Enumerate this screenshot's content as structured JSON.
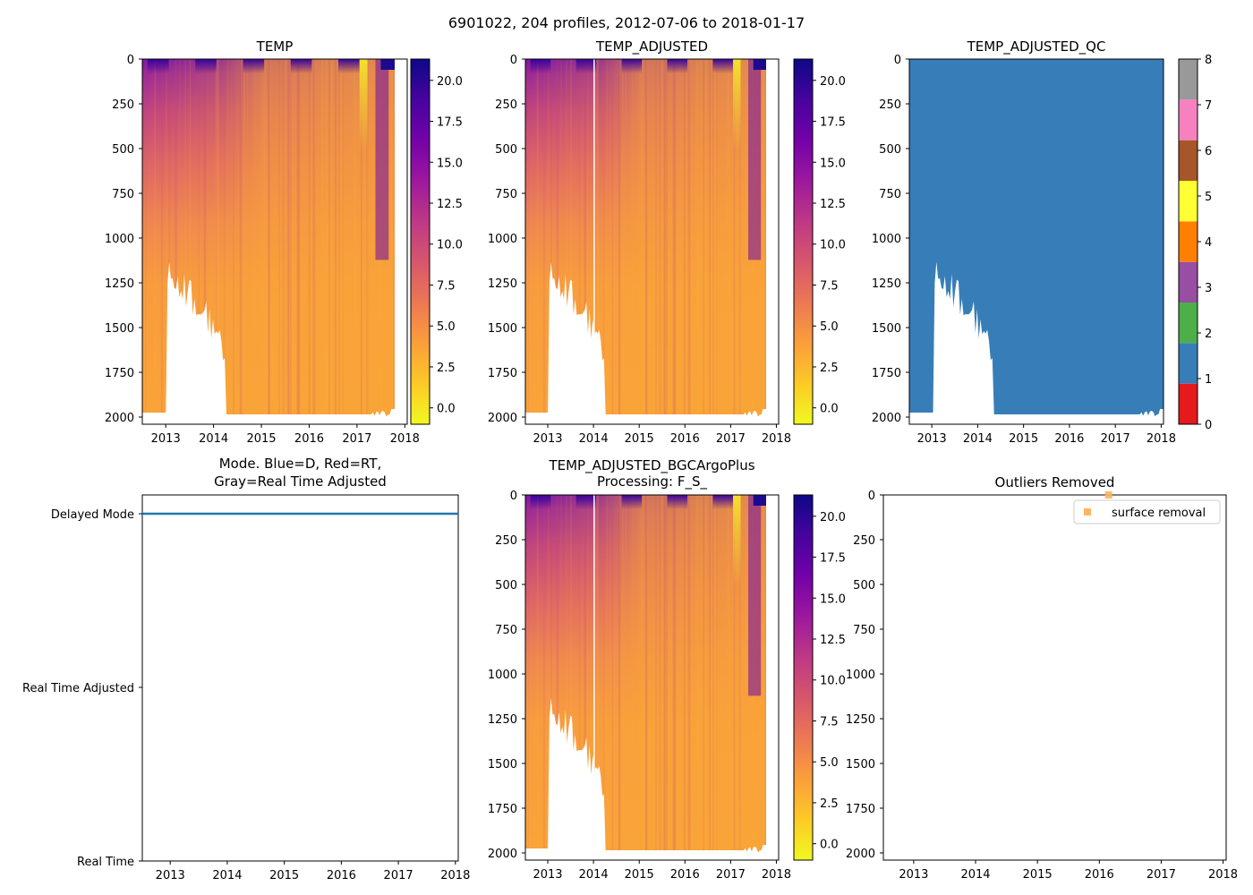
{
  "figure": {
    "suptitle": "6901022, 204 profiles, 2012-07-06 to 2018-01-17"
  },
  "colors": {
    "plasma": [
      "#0d0887",
      "#46039f",
      "#7201a8",
      "#9c179e",
      "#bd3786",
      "#d8576b",
      "#ed7953",
      "#fb9f3a",
      "#fdca26",
      "#f0f921"
    ],
    "qc_classes": [
      "#e41a1c",
      "#377eb8",
      "#4daf4a",
      "#984ea3",
      "#ff7f00",
      "#ffff33",
      "#a65628",
      "#f781bf",
      "#999999"
    ],
    "mode_line": "#1f77b4",
    "surface_marker": "#fdb462"
  },
  "chart_data": [
    {
      "id": "temp",
      "type": "heatmap",
      "title": "TEMP",
      "x_ticks": [
        "2013",
        "2014",
        "2015",
        "2016",
        "2017",
        "2018"
      ],
      "x_range": [
        2012.51,
        2018.05
      ],
      "y_ticks": [
        "0",
        "250",
        "500",
        "750",
        "1000",
        "1250",
        "1500",
        "1750",
        "2000"
      ],
      "y_range": [
        2040,
        0
      ],
      "y_inverted": true,
      "colorbar": {
        "cmap": "plasma_r",
        "range": [
          -1.0,
          21.3
        ],
        "ticks": [
          "0.0",
          "2.5",
          "5.0",
          "7.5",
          "10.0",
          "12.5",
          "15.0",
          "17.5",
          "20.0"
        ]
      }
    },
    {
      "id": "temp_adjusted",
      "type": "heatmap",
      "title": "TEMP_ADJUSTED",
      "x_ticks": [
        "2013",
        "2014",
        "2015",
        "2016",
        "2017",
        "2018"
      ],
      "x_range": [
        2012.51,
        2018.05
      ],
      "y_ticks": [
        "0",
        "250",
        "500",
        "750",
        "1000",
        "1250",
        "1500",
        "1750",
        "2000"
      ],
      "y_range": [
        2040,
        0
      ],
      "y_inverted": true,
      "colorbar": {
        "cmap": "plasma_r",
        "range": [
          -1.0,
          21.3
        ],
        "ticks": [
          "0.0",
          "2.5",
          "5.0",
          "7.5",
          "10.0",
          "12.5",
          "15.0",
          "17.5",
          "20.0"
        ]
      }
    },
    {
      "id": "temp_adjusted_qc",
      "type": "heatmap",
      "title": "TEMP_ADJUSTED_QC",
      "x_ticks": [
        "2013",
        "2014",
        "2015",
        "2016",
        "2017",
        "2018"
      ],
      "x_range": [
        2012.51,
        2018.05
      ],
      "y_ticks": [
        "0",
        "250",
        "500",
        "750",
        "1000",
        "1250",
        "1500",
        "1750",
        "2000"
      ],
      "y_range": [
        2040,
        0
      ],
      "y_inverted": true,
      "qc_value": 1,
      "colorbar": {
        "cmap": "qc_classes",
        "range": [
          0,
          8
        ],
        "ticks": [
          "0",
          "1",
          "2",
          "3",
          "4",
          "5",
          "6",
          "7",
          "8"
        ]
      }
    },
    {
      "id": "mode",
      "type": "line",
      "title_line1": "Mode. Blue=D, Red=RT,",
      "title_line2": "Gray=Real Time Adjusted",
      "x_ticks": [
        "2013",
        "2014",
        "2015",
        "2016",
        "2017",
        "2018"
      ],
      "x_range": [
        2012.51,
        2018.05
      ],
      "y_categories": [
        "Real Time",
        "Real Time Adjusted",
        "Delayed Mode"
      ],
      "series": [
        {
          "name": "Delayed Mode",
          "x": [
            2012.51,
            2018.05
          ],
          "y": [
            "Delayed Mode",
            "Delayed Mode"
          ]
        }
      ]
    },
    {
      "id": "bgcargoplus",
      "type": "heatmap",
      "title_line1": "TEMP_ADJUSTED_BGCArgoPlus",
      "title_line2": "Processing: F_S_",
      "x_ticks": [
        "2013",
        "2014",
        "2015",
        "2016",
        "2017",
        "2018"
      ],
      "x_range": [
        2012.51,
        2018.05
      ],
      "y_ticks": [
        "0",
        "250",
        "500",
        "750",
        "1000",
        "1250",
        "1500",
        "1750",
        "2000"
      ],
      "y_range": [
        2040,
        0
      ],
      "y_inverted": true,
      "colorbar": {
        "cmap": "plasma_r",
        "range": [
          -1.0,
          21.3
        ],
        "ticks": [
          "0.0",
          "2.5",
          "5.0",
          "7.5",
          "10.0",
          "12.5",
          "15.0",
          "17.5",
          "20.0"
        ]
      }
    },
    {
      "id": "outliers",
      "type": "scatter",
      "title": "Outliers Removed",
      "x_ticks": [
        "2013",
        "2014",
        "2015",
        "2016",
        "2017",
        "2018"
      ],
      "x_range": [
        2012.51,
        2018.05
      ],
      "y_ticks": [
        "0",
        "250",
        "500",
        "750",
        "1000",
        "1250",
        "1500",
        "1750",
        "2000"
      ],
      "y_range": [
        2040,
        0
      ],
      "y_inverted": true,
      "legend_position": "upper right",
      "series": [
        {
          "name": "surface removal",
          "x": [
            2016.15
          ],
          "y": [
            0
          ]
        }
      ]
    }
  ]
}
